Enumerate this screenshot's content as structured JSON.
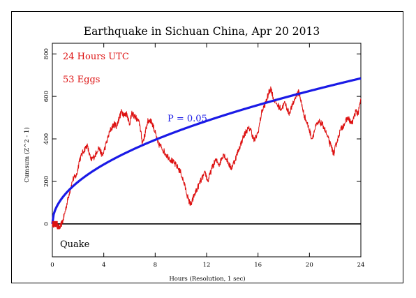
{
  "chart_data": {
    "type": "line",
    "title": "Earthquake in Sichuan China, Apr 20 2013",
    "xlabel": "Hours (Resolution, 1 sec)",
    "ylabel": "Cumsum (Z^2 - 1)",
    "xlim": [
      0,
      24
    ],
    "ylim": [
      -155,
      850
    ],
    "x_ticks": [
      0,
      4,
      8,
      12,
      16,
      20,
      24
    ],
    "y_ticks": [
      0,
      200,
      400,
      600,
      800
    ],
    "annotations": {
      "time_window": "24 Hours UTC",
      "eggs": "53 Eggs",
      "probability": "P = 0.05",
      "event": "Quake"
    },
    "zero_line": 0,
    "series": [
      {
        "color": "#dd1111",
        "x": [
          0,
          0.3,
          0.55,
          0.8,
          1.0,
          1.3,
          1.6,
          1.9,
          2.1,
          2.4,
          2.7,
          3.0,
          3.3,
          3.6,
          3.9,
          4.2,
          4.5,
          4.8,
          5.0,
          5.2,
          5.4,
          5.6,
          5.8,
          6.0,
          6.2,
          6.5,
          6.8,
          7.0,
          7.2,
          7.4,
          7.6,
          7.8,
          8.0,
          8.2,
          8.5,
          8.8,
          9.1,
          9.4,
          9.7,
          10.0,
          10.3,
          10.6,
          10.8,
          11.0,
          11.3,
          11.6,
          11.9,
          12.1,
          12.4,
          12.7,
          13.0,
          13.3,
          13.6,
          13.9,
          14.2,
          14.5,
          14.8,
          15.1,
          15.4,
          15.7,
          16.0,
          16.3,
          16.6,
          16.8,
          17.0,
          17.2,
          17.5,
          17.8,
          18.1,
          18.4,
          18.7,
          19.0,
          19.2,
          19.4,
          19.6,
          19.9,
          20.2,
          20.5,
          20.8,
          21.1,
          21.4,
          21.7,
          21.9,
          22.1,
          22.4,
          22.7,
          23.0,
          23.3,
          23.6,
          23.8,
          24.0
        ],
        "values": [
          0,
          -5,
          -20,
          10,
          60,
          140,
          210,
          230,
          300,
          340,
          370,
          300,
          320,
          360,
          320,
          380,
          440,
          470,
          460,
          500,
          530,
          510,
          520,
          470,
          520,
          500,
          470,
          380,
          420,
          480,
          490,
          470,
          430,
          380,
          360,
          330,
          310,
          290,
          270,
          240,
          180,
          110,
          90,
          130,
          170,
          210,
          240,
          200,
          260,
          300,
          280,
          330,
          300,
          260,
          300,
          350,
          400,
          440,
          450,
          390,
          430,
          530,
          570,
          610,
          640,
          590,
          560,
          540,
          570,
          520,
          560,
          610,
          620,
          560,
          510,
          460,
          400,
          460,
          480,
          460,
          410,
          360,
          330,
          380,
          440,
          470,
          500,
          470,
          530,
          520,
          590
        ]
      },
      {
        "name": "P = 0.05",
        "color": "#1a1ae6",
        "curve": "p05_envelope",
        "x": [
          0,
          0.25,
          0.5,
          1,
          1.5,
          2,
          3,
          4,
          5,
          6,
          7,
          8,
          9,
          10,
          11,
          12,
          13,
          14,
          15,
          16,
          17,
          18,
          19,
          20,
          21,
          22,
          23,
          24
        ],
        "values": [
          0,
          70,
          99,
          140,
          171,
          198,
          242,
          280,
          313,
          343,
          370,
          396,
          420,
          443,
          464,
          485,
          505,
          524,
          542,
          560,
          577,
          594,
          610,
          626,
          641,
          656,
          671,
          685
        ]
      }
    ],
    "marker": {
      "x": 0.2,
      "y": 0,
      "color": "#dd1111"
    }
  }
}
